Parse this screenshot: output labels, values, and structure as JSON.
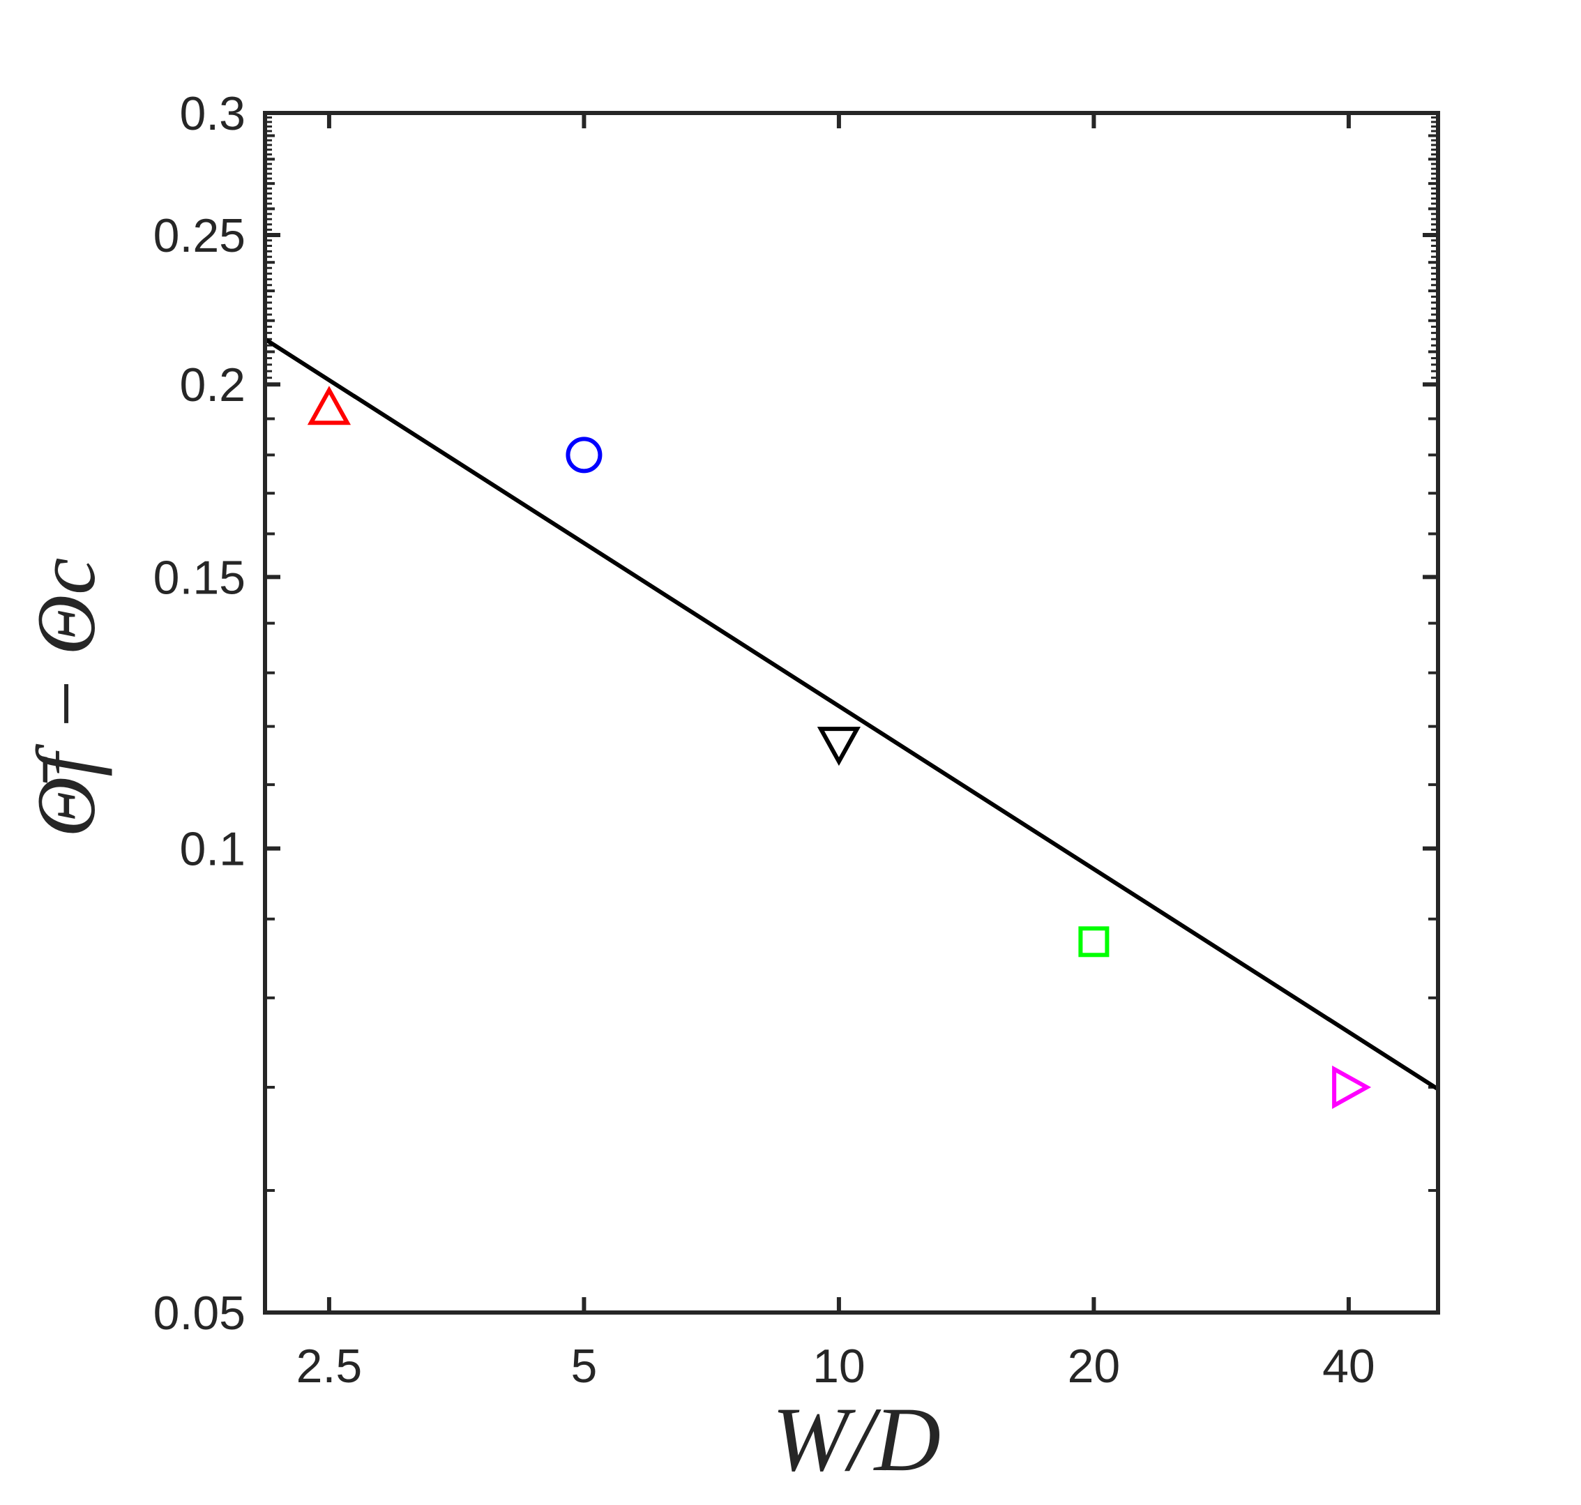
{
  "chart_data": {
    "type": "scatter",
    "title": "",
    "xlabel": "W/D",
    "ylabel": "Θ̄f − Θc",
    "xscale": "log",
    "yscale": "log",
    "xlim": [
      2.1,
      51
    ],
    "ylim": [
      0.05,
      0.3
    ],
    "xticks": [
      2.5,
      5,
      10,
      20,
      40
    ],
    "xtick_labels": [
      "2.5",
      "5",
      "10",
      "20",
      "40"
    ],
    "yticks": [
      0.05,
      0.1,
      0.15,
      0.2,
      0.25,
      0.3
    ],
    "ytick_labels": [
      "0.05",
      "0.1",
      "0.15",
      "0.2",
      "0.25",
      "0.3"
    ],
    "grid": false,
    "legend": false,
    "series": [
      {
        "marker": "triangle-up",
        "color": "#ff0000",
        "x": [
          2.5
        ],
        "y": [
          0.193
        ]
      },
      {
        "marker": "circle",
        "color": "#0000ff",
        "x": [
          5
        ],
        "y": [
          0.18
        ]
      },
      {
        "marker": "triangle-down",
        "color": "#000000",
        "x": [
          10
        ],
        "y": [
          0.117
        ]
      },
      {
        "marker": "square",
        "color": "#00ff00",
        "x": [
          20
        ],
        "y": [
          0.087
        ]
      },
      {
        "marker": "triangle-right",
        "color": "#ff00ff",
        "x": [
          40
        ],
        "y": [
          0.07
        ]
      }
    ],
    "fit_line": {
      "color": "#000000",
      "x": [
        2.1,
        51
      ],
      "y": [
        0.214,
        0.0698
      ]
    }
  }
}
